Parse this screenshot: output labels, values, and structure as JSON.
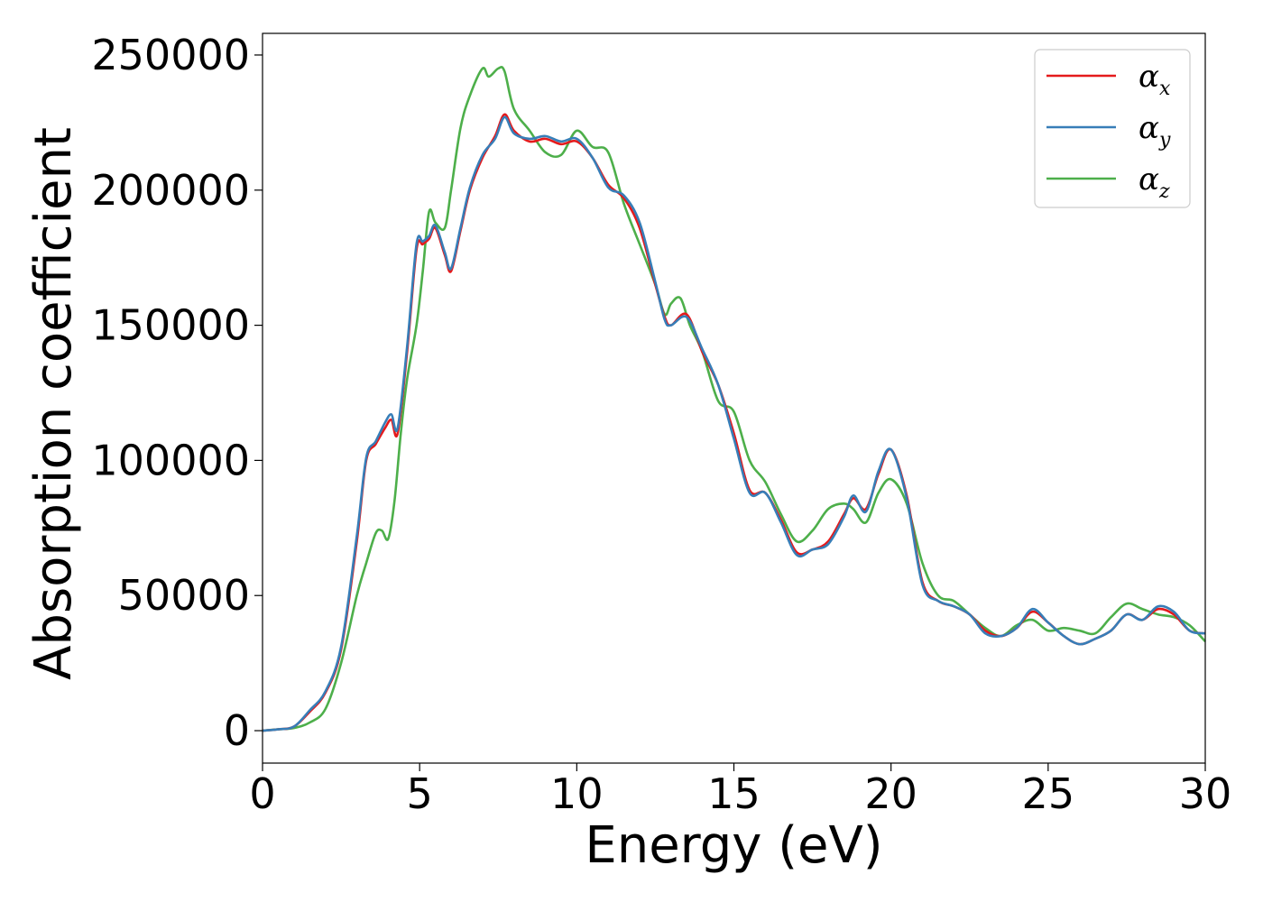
{
  "chart_data": {
    "type": "line",
    "xlabel": "Energy (eV)",
    "ylabel": "Absorption coefficient",
    "xlim": [
      0,
      30
    ],
    "ylim": [
      -12000,
      258000
    ],
    "xticks": [
      "0",
      "5",
      "10",
      "15",
      "20",
      "25",
      "30"
    ],
    "yticks": [
      "0",
      "50000",
      "100000",
      "150000",
      "200000",
      "250000"
    ],
    "grid": false,
    "legend_position": "top-right",
    "series": [
      {
        "name": "α",
        "subscript": "x",
        "color": "#e41a1c",
        "x": [
          0,
          0.5,
          1,
          1.5,
          2,
          2.5,
          3,
          3.3,
          3.6,
          3.9,
          4.1,
          4.3,
          4.6,
          4.9,
          5.1,
          5.3,
          5.5,
          5.8,
          6.0,
          6.3,
          6.6,
          7.0,
          7.4,
          7.7,
          8.0,
          8.5,
          9.0,
          9.5,
          10.0,
          10.5,
          11.0,
          11.5,
          12.0,
          12.5,
          12.8,
          13.0,
          13.5,
          14.0,
          14.5,
          15.0,
          15.5,
          16.0,
          16.5,
          17.0,
          17.5,
          18.0,
          18.5,
          18.8,
          19.2,
          19.6,
          20.0,
          20.5,
          21.0,
          21.5,
          22.0,
          22.5,
          23.0,
          23.5,
          24.0,
          24.5,
          25.0,
          25.5,
          26.0,
          26.5,
          27.0,
          27.5,
          28.0,
          28.5,
          29.0,
          29.5,
          30.0
        ],
        "y": [
          0,
          500,
          1500,
          7000,
          14000,
          30000,
          70000,
          100000,
          106000,
          112000,
          115000,
          110000,
          140000,
          178000,
          180000,
          182000,
          186000,
          176000,
          170000,
          185000,
          200000,
          212000,
          220000,
          228000,
          222000,
          218000,
          219000,
          217000,
          218000,
          212000,
          202000,
          197000,
          186000,
          165000,
          153000,
          150000,
          154000,
          140000,
          128000,
          110000,
          89000,
          88000,
          78000,
          66000,
          67000,
          70000,
          80000,
          86000,
          82000,
          95000,
          104000,
          87000,
          55000,
          48000,
          46000,
          43000,
          37000,
          35000,
          38000,
          44000,
          40000,
          35000,
          32000,
          34000,
          37000,
          43000,
          41000,
          45000,
          43000,
          37000,
          36000
        ]
      },
      {
        "name": "α",
        "subscript": "y",
        "color": "#377eb8",
        "x": [
          0,
          0.5,
          1,
          1.5,
          2,
          2.5,
          3,
          3.3,
          3.6,
          3.9,
          4.1,
          4.3,
          4.6,
          4.9,
          5.1,
          5.3,
          5.5,
          5.8,
          6.0,
          6.3,
          6.6,
          7.0,
          7.4,
          7.7,
          8.0,
          8.5,
          9.0,
          9.5,
          10.0,
          10.5,
          11.0,
          11.5,
          12.0,
          12.5,
          12.8,
          13.0,
          13.5,
          14.0,
          14.5,
          15.0,
          15.5,
          16.0,
          16.5,
          17.0,
          17.5,
          18.0,
          18.5,
          18.8,
          19.2,
          19.6,
          20.0,
          20.5,
          21.0,
          21.5,
          22.0,
          22.5,
          23.0,
          23.5,
          24.0,
          24.5,
          25.0,
          25.5,
          26.0,
          26.5,
          27.0,
          27.5,
          28.0,
          28.5,
          29.0,
          29.5,
          30.0
        ],
        "y": [
          0,
          500,
          1500,
          7500,
          14500,
          31000,
          72000,
          101000,
          107000,
          114000,
          117000,
          112000,
          142000,
          180000,
          181000,
          183000,
          187000,
          177000,
          171000,
          186000,
          201000,
          213000,
          219000,
          227000,
          221000,
          219000,
          220000,
          218000,
          219000,
          212000,
          201000,
          198000,
          188000,
          166000,
          152000,
          150000,
          153000,
          141000,
          128000,
          108000,
          88000,
          88000,
          77000,
          65000,
          67000,
          69000,
          79000,
          87000,
          81000,
          96000,
          104000,
          86000,
          54000,
          48000,
          46000,
          43000,
          36000,
          35000,
          38000,
          45000,
          40000,
          35000,
          32000,
          34000,
          37000,
          43000,
          41000,
          46000,
          44000,
          37000,
          36000
        ]
      },
      {
        "name": "α",
        "subscript": "z",
        "color": "#4daf4a",
        "x": [
          0,
          0.5,
          1,
          1.5,
          2,
          2.5,
          3,
          3.3,
          3.6,
          3.8,
          4.0,
          4.2,
          4.4,
          4.6,
          4.9,
          5.1,
          5.3,
          5.5,
          5.8,
          6.0,
          6.3,
          6.6,
          7.0,
          7.2,
          7.5,
          7.7,
          8.0,
          8.5,
          9.0,
          9.5,
          10.0,
          10.5,
          11.0,
          11.5,
          12.0,
          12.5,
          12.8,
          13.0,
          13.3,
          13.6,
          14.0,
          14.5,
          15.0,
          15.5,
          16.0,
          16.5,
          17.0,
          17.5,
          18.0,
          18.5,
          18.8,
          19.2,
          19.6,
          20.0,
          20.5,
          21.0,
          21.5,
          22.0,
          22.5,
          23.0,
          23.5,
          24.0,
          24.5,
          25.0,
          25.5,
          26.0,
          26.5,
          27.0,
          27.5,
          28.0,
          28.5,
          29.0,
          29.5,
          30.0
        ],
        "y": [
          0,
          500,
          1000,
          3000,
          8000,
          25000,
          50000,
          62000,
          73000,
          74000,
          71000,
          85000,
          110000,
          130000,
          150000,
          170000,
          192000,
          188000,
          186000,
          200000,
          223000,
          235000,
          245000,
          242000,
          245000,
          244000,
          230000,
          222000,
          214000,
          213000,
          222000,
          216000,
          214000,
          195000,
          180000,
          165000,
          154000,
          158000,
          160000,
          150000,
          140000,
          122000,
          118000,
          100000,
          92000,
          80000,
          70000,
          74000,
          82000,
          84000,
          82000,
          77000,
          88000,
          93000,
          84000,
          62000,
          50000,
          48000,
          43000,
          38000,
          35000,
          39000,
          41000,
          37000,
          38000,
          37000,
          36000,
          42000,
          47000,
          45000,
          43000,
          42000,
          39000,
          33000
        ]
      }
    ]
  }
}
